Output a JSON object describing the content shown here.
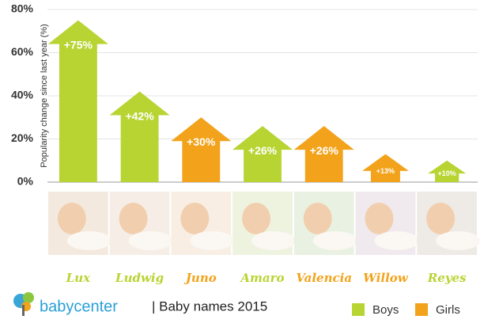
{
  "chart_data": {
    "type": "arrow-bar",
    "y_label": "Popularity change since last year (%)",
    "categories": [
      "Lux",
      "Ludwig",
      "Juno",
      "Amaro",
      "Valencia",
      "Willow",
      "Reyes"
    ],
    "series": [
      {
        "name": "Boys",
        "color": "#b8d433",
        "values": [
          75,
          42,
          null,
          26,
          null,
          null,
          10
        ],
        "value_labels": [
          "+75%",
          "+42%",
          null,
          "+26%",
          null,
          null,
          "+10%"
        ]
      },
      {
        "name": "Girls",
        "color": "#f2a31b",
        "values": [
          null,
          null,
          30,
          null,
          26,
          13,
          null
        ],
        "value_labels": [
          null,
          null,
          "+30%",
          null,
          "+26%",
          "+13%",
          null
        ]
      }
    ],
    "ylim": [
      0,
      80
    ],
    "yticks": [
      {
        "value": 0,
        "label": "0%"
      },
      {
        "value": 20,
        "label": "20%"
      },
      {
        "value": 40,
        "label": "40%"
      },
      {
        "value": 60,
        "label": "60%"
      },
      {
        "value": 80,
        "label": "80%"
      }
    ],
    "brand": "babycenter",
    "footer": "| Baby names 2015"
  }
}
